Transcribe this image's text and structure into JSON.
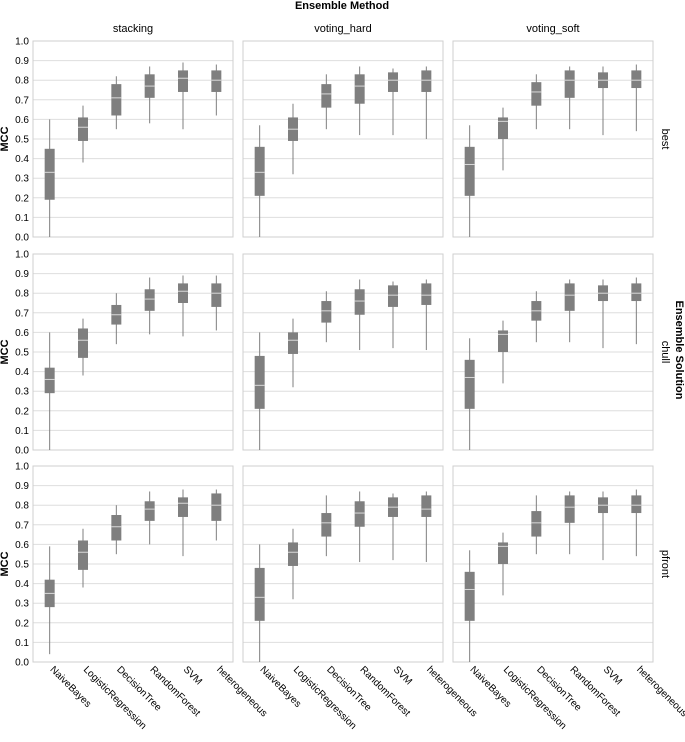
{
  "chart_data": {
    "type": "boxplot",
    "title": "Ensemble Method",
    "row_title": "Ensemble Solution",
    "ylabel": "MCC",
    "ylim": [
      0,
      1
    ],
    "yticks": [
      "0.0",
      "0.1",
      "0.2",
      "0.3",
      "0.4",
      "0.5",
      "0.6",
      "0.7",
      "0.8",
      "0.9",
      "1.0"
    ],
    "columns": [
      "stacking",
      "voting_hard",
      "voting_soft"
    ],
    "rows": [
      "best",
      "chull",
      "pfront"
    ],
    "categories": [
      "NaiveBayes",
      "LogisticRegression",
      "DecisionTree",
      "RandomForest",
      "SVM",
      "heterogeneous"
    ],
    "box_color": "#7f7f7f",
    "median_color": "#d9d9d9",
    "grid": true,
    "panels": [
      {
        "row": "best",
        "column": "stacking",
        "boxes": [
          {
            "min": 0.0,
            "q1": 0.19,
            "median": 0.33,
            "q3": 0.45,
            "max": 0.6
          },
          {
            "min": 0.38,
            "q1": 0.49,
            "median": 0.56,
            "q3": 0.61,
            "max": 0.67
          },
          {
            "min": 0.55,
            "q1": 0.62,
            "median": 0.71,
            "q3": 0.78,
            "max": 0.82
          },
          {
            "min": 0.58,
            "q1": 0.71,
            "median": 0.77,
            "q3": 0.83,
            "max": 0.87
          },
          {
            "min": 0.55,
            "q1": 0.74,
            "median": 0.81,
            "q3": 0.85,
            "max": 0.89
          },
          {
            "min": 0.62,
            "q1": 0.74,
            "median": 0.8,
            "q3": 0.85,
            "max": 0.88
          }
        ]
      },
      {
        "row": "best",
        "column": "voting_hard",
        "boxes": [
          {
            "min": 0.0,
            "q1": 0.21,
            "median": 0.33,
            "q3": 0.46,
            "max": 0.57
          },
          {
            "min": 0.32,
            "q1": 0.49,
            "median": 0.55,
            "q3": 0.61,
            "max": 0.68
          },
          {
            "min": 0.55,
            "q1": 0.66,
            "median": 0.73,
            "q3": 0.78,
            "max": 0.83
          },
          {
            "min": 0.52,
            "q1": 0.68,
            "median": 0.77,
            "q3": 0.83,
            "max": 0.87
          },
          {
            "min": 0.52,
            "q1": 0.74,
            "median": 0.8,
            "q3": 0.84,
            "max": 0.86
          },
          {
            "min": 0.5,
            "q1": 0.74,
            "median": 0.8,
            "q3": 0.85,
            "max": 0.87
          }
        ]
      },
      {
        "row": "best",
        "column": "voting_soft",
        "boxes": [
          {
            "min": 0.0,
            "q1": 0.21,
            "median": 0.37,
            "q3": 0.46,
            "max": 0.57
          },
          {
            "min": 0.34,
            "q1": 0.5,
            "median": 0.59,
            "q3": 0.61,
            "max": 0.66
          },
          {
            "min": 0.55,
            "q1": 0.67,
            "median": 0.74,
            "q3": 0.79,
            "max": 0.83
          },
          {
            "min": 0.55,
            "q1": 0.71,
            "median": 0.8,
            "q3": 0.85,
            "max": 0.87
          },
          {
            "min": 0.52,
            "q1": 0.76,
            "median": 0.8,
            "q3": 0.84,
            "max": 0.87
          },
          {
            "min": 0.54,
            "q1": 0.76,
            "median": 0.8,
            "q3": 0.85,
            "max": 0.88
          }
        ]
      },
      {
        "row": "chull",
        "column": "stacking",
        "boxes": [
          {
            "min": 0.0,
            "q1": 0.29,
            "median": 0.36,
            "q3": 0.42,
            "max": 0.6
          },
          {
            "min": 0.38,
            "q1": 0.47,
            "median": 0.56,
            "q3": 0.62,
            "max": 0.67
          },
          {
            "min": 0.54,
            "q1": 0.64,
            "median": 0.69,
            "q3": 0.74,
            "max": 0.8
          },
          {
            "min": 0.59,
            "q1": 0.71,
            "median": 0.77,
            "q3": 0.82,
            "max": 0.88
          },
          {
            "min": 0.58,
            "q1": 0.75,
            "median": 0.81,
            "q3": 0.85,
            "max": 0.89
          },
          {
            "min": 0.61,
            "q1": 0.73,
            "median": 0.8,
            "q3": 0.85,
            "max": 0.89
          }
        ]
      },
      {
        "row": "chull",
        "column": "voting_hard",
        "boxes": [
          {
            "min": 0.0,
            "q1": 0.21,
            "median": 0.33,
            "q3": 0.48,
            "max": 0.6
          },
          {
            "min": 0.32,
            "q1": 0.49,
            "median": 0.56,
            "q3": 0.6,
            "max": 0.67
          },
          {
            "min": 0.55,
            "q1": 0.65,
            "median": 0.71,
            "q3": 0.76,
            "max": 0.81
          },
          {
            "min": 0.51,
            "q1": 0.69,
            "median": 0.76,
            "q3": 0.82,
            "max": 0.87
          },
          {
            "min": 0.52,
            "q1": 0.73,
            "median": 0.79,
            "q3": 0.84,
            "max": 0.86
          },
          {
            "min": 0.51,
            "q1": 0.74,
            "median": 0.79,
            "q3": 0.85,
            "max": 0.87
          }
        ]
      },
      {
        "row": "chull",
        "column": "voting_soft",
        "boxes": [
          {
            "min": 0.0,
            "q1": 0.21,
            "median": 0.37,
            "q3": 0.46,
            "max": 0.57
          },
          {
            "min": 0.34,
            "q1": 0.5,
            "median": 0.59,
            "q3": 0.61,
            "max": 0.66
          },
          {
            "min": 0.55,
            "q1": 0.66,
            "median": 0.71,
            "q3": 0.76,
            "max": 0.81
          },
          {
            "min": 0.55,
            "q1": 0.71,
            "median": 0.79,
            "q3": 0.85,
            "max": 0.87
          },
          {
            "min": 0.52,
            "q1": 0.76,
            "median": 0.8,
            "q3": 0.84,
            "max": 0.87
          },
          {
            "min": 0.54,
            "q1": 0.76,
            "median": 0.8,
            "q3": 0.85,
            "max": 0.88
          }
        ]
      },
      {
        "row": "pfront",
        "column": "stacking",
        "boxes": [
          {
            "min": 0.04,
            "q1": 0.28,
            "median": 0.35,
            "q3": 0.42,
            "max": 0.59
          },
          {
            "min": 0.38,
            "q1": 0.47,
            "median": 0.56,
            "q3": 0.62,
            "max": 0.68
          },
          {
            "min": 0.55,
            "q1": 0.62,
            "median": 0.69,
            "q3": 0.75,
            "max": 0.8
          },
          {
            "min": 0.6,
            "q1": 0.72,
            "median": 0.78,
            "q3": 0.82,
            "max": 0.87
          },
          {
            "min": 0.54,
            "q1": 0.74,
            "median": 0.81,
            "q3": 0.84,
            "max": 0.88
          },
          {
            "min": 0.62,
            "q1": 0.72,
            "median": 0.8,
            "q3": 0.86,
            "max": 0.88
          }
        ]
      },
      {
        "row": "pfront",
        "column": "voting_hard",
        "boxes": [
          {
            "min": 0.0,
            "q1": 0.21,
            "median": 0.33,
            "q3": 0.48,
            "max": 0.6
          },
          {
            "min": 0.32,
            "q1": 0.49,
            "median": 0.56,
            "q3": 0.61,
            "max": 0.68
          },
          {
            "min": 0.54,
            "q1": 0.64,
            "median": 0.71,
            "q3": 0.76,
            "max": 0.85
          },
          {
            "min": 0.51,
            "q1": 0.69,
            "median": 0.76,
            "q3": 0.82,
            "max": 0.87
          },
          {
            "min": 0.52,
            "q1": 0.74,
            "median": 0.79,
            "q3": 0.84,
            "max": 0.86
          },
          {
            "min": 0.51,
            "q1": 0.74,
            "median": 0.78,
            "q3": 0.85,
            "max": 0.87
          }
        ]
      },
      {
        "row": "pfront",
        "column": "voting_soft",
        "boxes": [
          {
            "min": 0.0,
            "q1": 0.21,
            "median": 0.37,
            "q3": 0.46,
            "max": 0.57
          },
          {
            "min": 0.34,
            "q1": 0.5,
            "median": 0.59,
            "q3": 0.61,
            "max": 0.66
          },
          {
            "min": 0.55,
            "q1": 0.64,
            "median": 0.71,
            "q3": 0.77,
            "max": 0.85
          },
          {
            "min": 0.55,
            "q1": 0.71,
            "median": 0.79,
            "q3": 0.85,
            "max": 0.87
          },
          {
            "min": 0.52,
            "q1": 0.76,
            "median": 0.8,
            "q3": 0.84,
            "max": 0.87
          },
          {
            "min": 0.54,
            "q1": 0.76,
            "median": 0.8,
            "q3": 0.85,
            "max": 0.88
          }
        ]
      }
    ]
  }
}
